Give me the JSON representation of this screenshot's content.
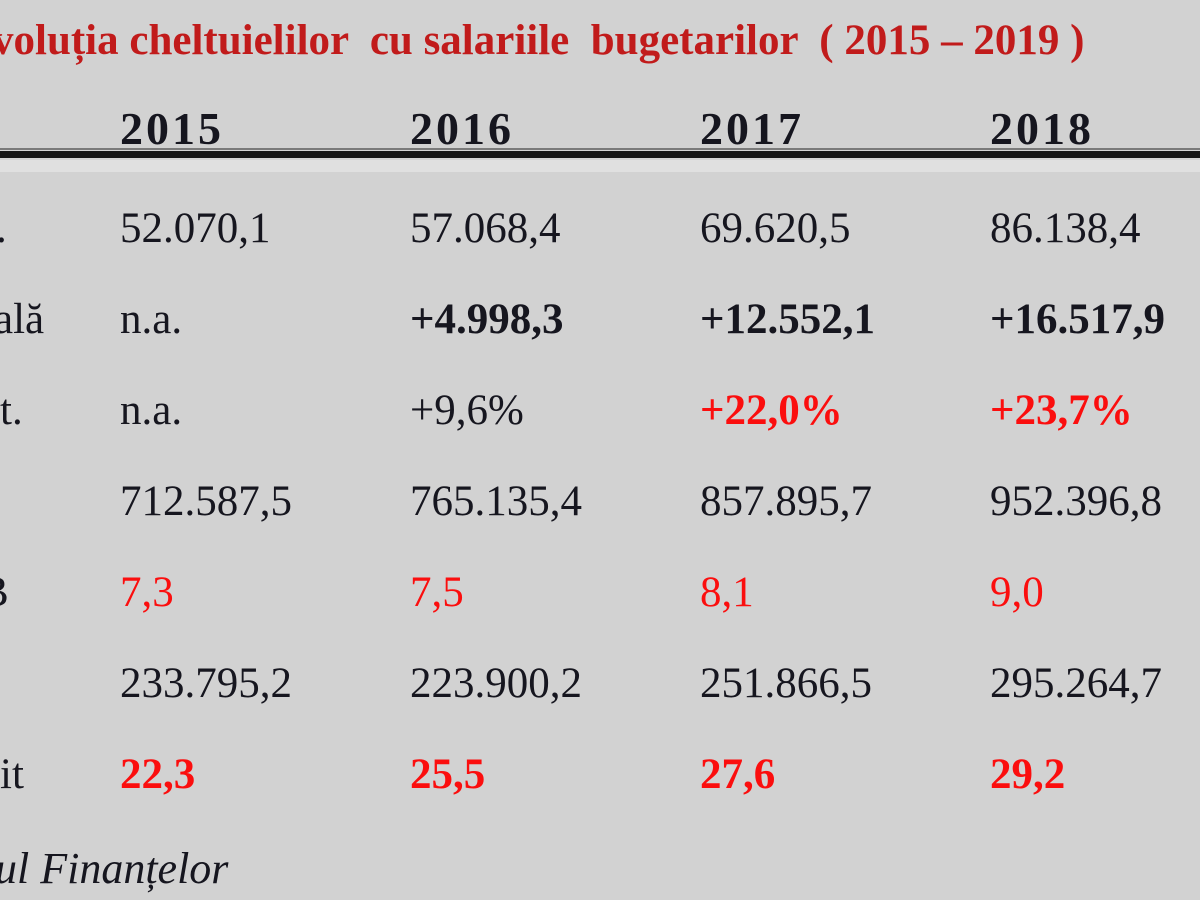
{
  "title": {
    "text": "voluția cheltuielilor  cu salariile  bugetarilor  ( 2015 – 2019 )"
  },
  "colors": {
    "background": "#d2d2d2",
    "title_red": "#c11b1b",
    "data_red": "#fb0e0e",
    "text_black": "#16161f",
    "rule_black": "#141414"
  },
  "table": {
    "years": [
      "2015",
      "2016",
      "2017",
      "2018"
    ],
    "rows": [
      {
        "label_fragment": "t.",
        "cells": [
          "52.070,1",
          "57.068,4",
          "69.620,5",
          "86.138,4"
        ]
      },
      {
        "label_fragment": "ală",
        "cells": [
          "n.a.",
          "+4.998,3",
          "+12.552,1",
          "+16.517,9"
        ]
      },
      {
        "label_fragment": "t.",
        "cells": [
          "n.a.",
          "+9,6%",
          "+22,0%",
          "+23,7%"
        ]
      },
      {
        "label_fragment": "",
        "cells": [
          "712.587,5",
          "765.135,4",
          "857.895,7",
          "952.396,8"
        ]
      },
      {
        "label_fragment": "B",
        "cells": [
          "7,3",
          "7,5",
          "8,1",
          "9,0"
        ]
      },
      {
        "label_fragment": "",
        "cells": [
          "233.795,2",
          "223.900,2",
          "251.866,5",
          "295.264,7"
        ]
      },
      {
        "label_fragment": "it",
        "cells": [
          "22,3",
          "25,5",
          "27,6",
          "29,2"
        ]
      }
    ]
  },
  "footer": {
    "source_fragment": "ul Finanțelor"
  }
}
